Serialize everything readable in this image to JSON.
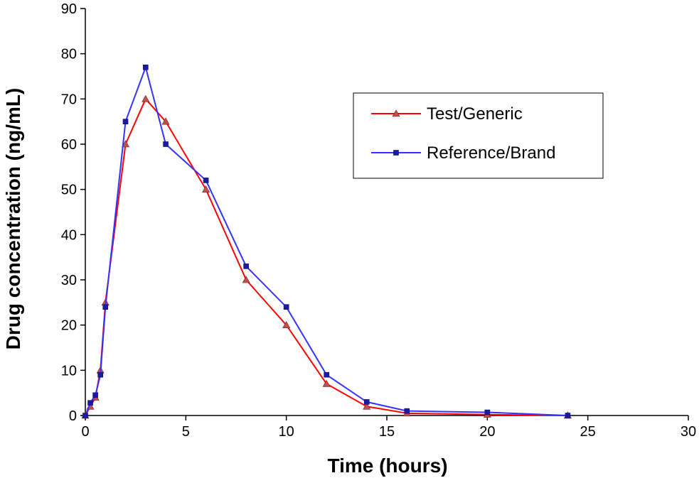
{
  "chart_data": {
    "type": "line",
    "xlabel": "Time (hours)",
    "ylabel": "Drug concentration (ng/mL)",
    "xlim": [
      0,
      30
    ],
    "ylim": [
      0,
      90
    ],
    "xticks": [
      0,
      5,
      10,
      15,
      20,
      25,
      30
    ],
    "yticks": [
      0,
      10,
      20,
      30,
      40,
      50,
      60,
      70,
      80,
      90
    ],
    "grid": false,
    "legend_position": "top-right",
    "series": [
      {
        "name": "Test/Generic",
        "color": "#ff0000",
        "marker_color": "#c0504d",
        "marker": "triangle",
        "x": [
          0,
          0.25,
          0.5,
          0.75,
          1,
          2,
          3,
          4,
          6,
          8,
          10,
          12,
          14,
          16,
          20,
          24
        ],
        "y": [
          0,
          2,
          4,
          10,
          25,
          60,
          70,
          65,
          50,
          30,
          20,
          7,
          2,
          0.5,
          0.2,
          0
        ]
      },
      {
        "name": "Reference/Brand",
        "color": "#3333ff",
        "marker_color": "#1a1aa6",
        "marker": "square",
        "x": [
          0,
          0.25,
          0.5,
          0.75,
          1,
          2,
          3,
          4,
          6,
          8,
          10,
          12,
          14,
          16,
          20,
          24
        ],
        "y": [
          0,
          2.8,
          4.5,
          9,
          24,
          65,
          77,
          60,
          52,
          33,
          24,
          9,
          3,
          1,
          0.7,
          0
        ]
      }
    ]
  }
}
